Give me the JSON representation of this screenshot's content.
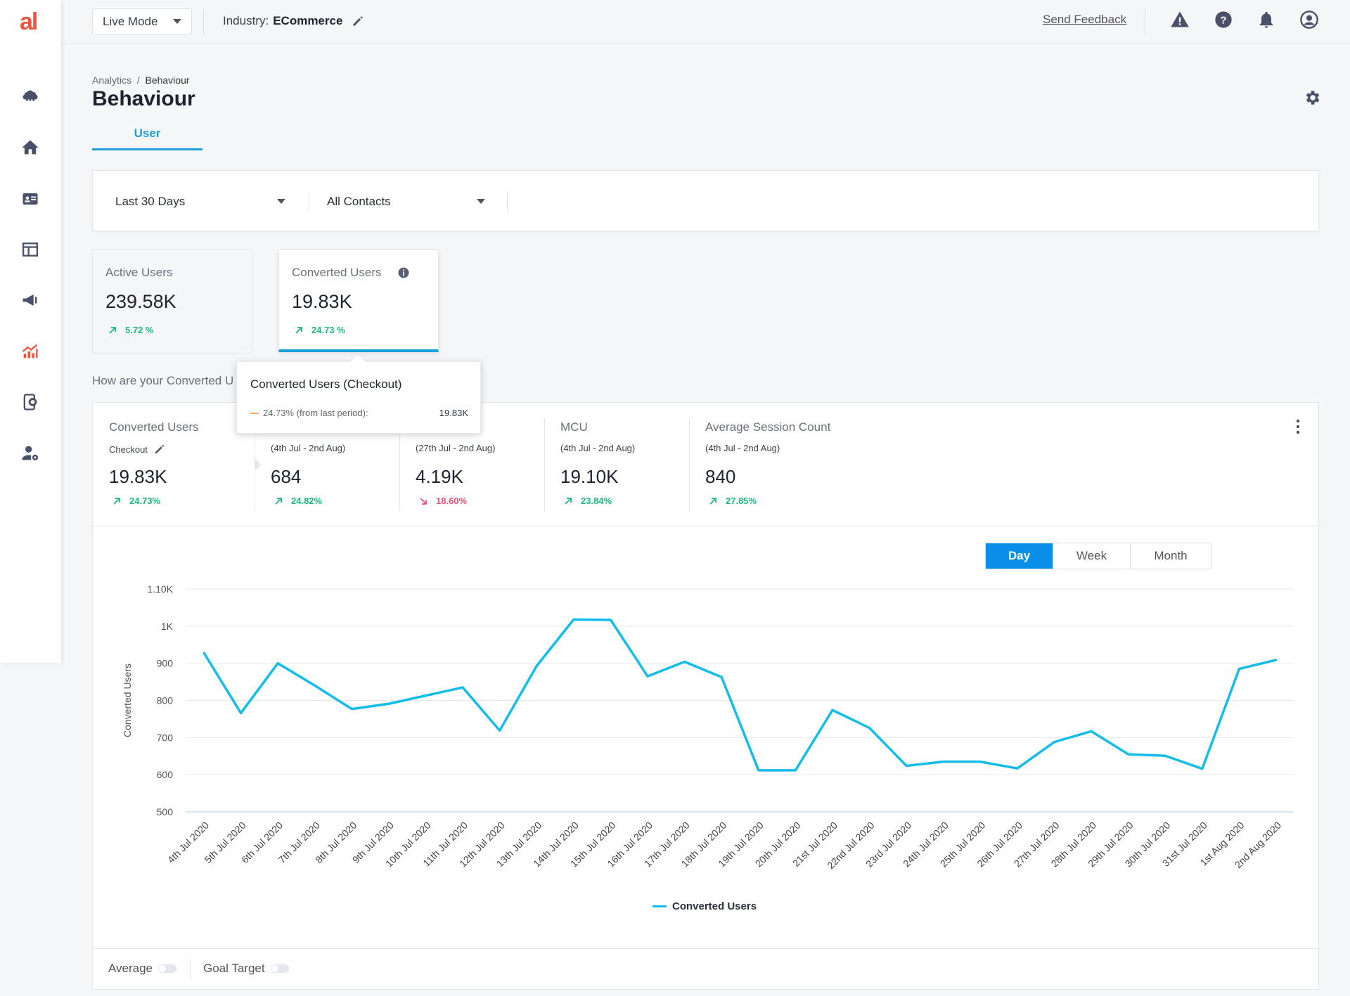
{
  "app": {
    "logo_text": "al"
  },
  "topbar": {
    "mode": "Live Mode",
    "industry_label": "Industry:",
    "industry_value": "ECommerce",
    "feedback": "Send Feedback"
  },
  "page": {
    "breadcrumb_root": "Analytics",
    "breadcrumb_sep": "/",
    "breadcrumb_current": "Behaviour",
    "title": "Behaviour",
    "tab": "User"
  },
  "filters": {
    "range": "Last 30 Days",
    "segment": "All Contacts"
  },
  "kpis": [
    {
      "label": "Active Users",
      "value": "239.58K",
      "delta": "5.72 %"
    },
    {
      "label": "Converted Users",
      "value": "19.83K",
      "delta": "24.73 %"
    }
  ],
  "question": "How are your Converted U",
  "metrics": [
    {
      "label": "Converted Users",
      "sub": "Checkout",
      "value": "19.83K",
      "delta": "24.73%",
      "trend": "up"
    },
    {
      "label": "",
      "sub": "(4th Jul - 2nd Aug)",
      "value": "684",
      "delta": "24.82%",
      "trend": "up"
    },
    {
      "label": "",
      "sub": "(27th Jul - 2nd Aug)",
      "value": "4.19K",
      "delta": "18.60%",
      "trend": "down"
    },
    {
      "label": "MCU",
      "sub": "(4th Jul - 2nd Aug)",
      "value": "19.10K",
      "delta": "23.84%",
      "trend": "up"
    },
    {
      "label": "Average Session Count",
      "sub": "(4th Jul - 2nd Aug)",
      "value": "840",
      "delta": "27.85%",
      "trend": "up"
    }
  ],
  "tooltip": {
    "title": "Converted Users (Checkout)",
    "row_label": "24.73% (from last period):",
    "row_value": "19.83K"
  },
  "granularity": {
    "options": [
      "Day",
      "Week",
      "Month"
    ],
    "selected": "Day"
  },
  "toggles": {
    "average": "Average",
    "goal": "Goal Target"
  },
  "colors": {
    "accent": "#1a9fd8",
    "line": "#14bde9",
    "up": "#1bb87a",
    "down": "#e8547a",
    "brand": "#f0533c"
  },
  "chart_data": {
    "type": "line",
    "ylabel": "Converted Users",
    "xlabel": "",
    "ylim": [
      500,
      1100
    ],
    "yticks": [
      500,
      600,
      700,
      800,
      900,
      1000,
      1100
    ],
    "ytick_labels": [
      "500",
      "600",
      "700",
      "800",
      "900",
      "1K",
      "1.10K"
    ],
    "categories": [
      "4th Jul 2020",
      "5th Jul 2020",
      "6th Jul 2020",
      "7th Jul 2020",
      "8th Jul 2020",
      "9th Jul 2020",
      "10th Jul 2020",
      "11th Jul 2020",
      "12th Jul 2020",
      "13th Jul 2020",
      "14th Jul 2020",
      "15th Jul 2020",
      "16th Jul 2020",
      "17th Jul 2020",
      "18th Jul 2020",
      "19th Jul 2020",
      "20th Jul 2020",
      "21st Jul 2020",
      "22nd Jul 2020",
      "23rd Jul 2020",
      "24th Jul 2020",
      "25th Jul 2020",
      "26th Jul 2020",
      "27th Jul 2020",
      "28th Jul 2020",
      "29th Jul 2020",
      "30th Jul 2020",
      "31st Jul 2020",
      "1st Aug 2020",
      "2nd Aug 2020"
    ],
    "series": [
      {
        "name": "Converted Users",
        "values": [
          928,
          766,
          900,
          840,
          777,
          791,
          813,
          835,
          719,
          893,
          1018,
          1017,
          865,
          904,
          863,
          612,
          612,
          774,
          726,
          624,
          635,
          635,
          617,
          688,
          717,
          655,
          651,
          616,
          885,
          909
        ]
      }
    ],
    "grid": true,
    "legend": "bottom"
  }
}
